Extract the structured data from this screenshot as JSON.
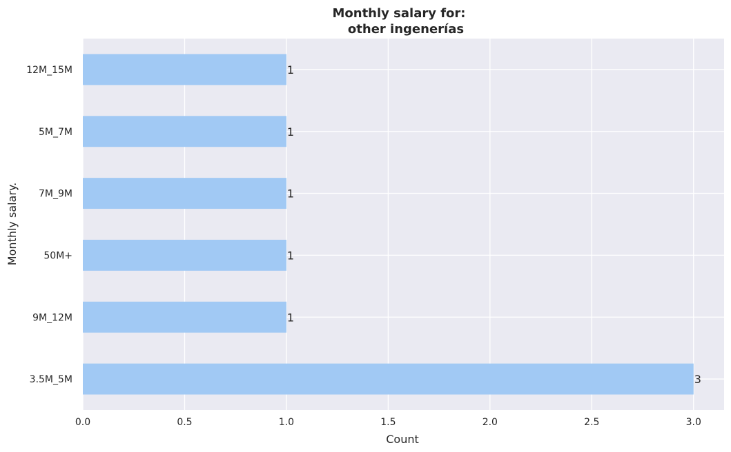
{
  "chart_data": {
    "type": "bar",
    "orientation": "horizontal",
    "title_lines": [
      "Monthly salary for:",
      "other ingenerías"
    ],
    "xlabel": "Count",
    "ylabel": "Monthly salary.",
    "categories": [
      "3.5M_5M",
      "9M_12M",
      "50M+",
      "7M_9M",
      "5M_7M",
      "12M_15M"
    ],
    "values": [
      3,
      1,
      1,
      1,
      1,
      1
    ],
    "data_labels": [
      "3",
      "1",
      "1",
      "1",
      "1",
      "1"
    ],
    "xlim": [
      0,
      3.15
    ],
    "xticks": [
      0.0,
      0.5,
      1.0,
      1.5,
      2.0,
      2.5,
      3.0
    ],
    "xtick_labels": [
      "0.0",
      "0.5",
      "1.0",
      "1.5",
      "2.0",
      "2.5",
      "3.0"
    ],
    "grid": true,
    "colors": {
      "bar": "#a1c9f4",
      "plot_background": "#eaeaf2",
      "grid": "#ffffff",
      "text": "#262626"
    }
  }
}
